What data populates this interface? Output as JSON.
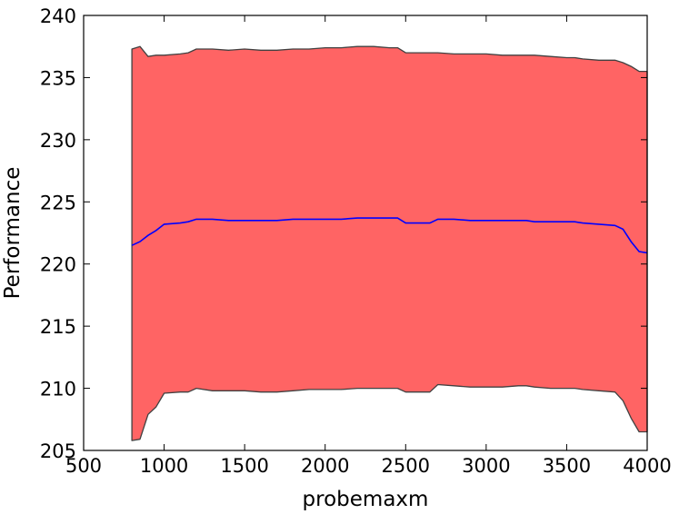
{
  "chart_data": {
    "type": "area",
    "title": "",
    "xlabel": "probemaxm",
    "ylabel": "Performance",
    "xlim": [
      500,
      4000
    ],
    "ylim": [
      205,
      240
    ],
    "xticks": [
      "500",
      "1000",
      "1500",
      "2000",
      "2500",
      "3000",
      "3500",
      "4000"
    ],
    "yticks": [
      "205",
      "210",
      "215",
      "220",
      "225",
      "230",
      "235",
      "240"
    ],
    "grid": false,
    "legend": "none",
    "colors": {
      "band_fill": "#ff6464",
      "band_edge": "#404040",
      "mean_line": "#0000ff"
    },
    "x": [
      800,
      850,
      900,
      950,
      1000,
      1100,
      1150,
      1200,
      1300,
      1400,
      1500,
      1600,
      1700,
      1800,
      1900,
      2000,
      2100,
      2200,
      2300,
      2400,
      2450,
      2500,
      2600,
      2650,
      2700,
      2800,
      2900,
      3000,
      3100,
      3200,
      3250,
      3300,
      3400,
      3500,
      3550,
      3600,
      3700,
      3800,
      3850,
      3900,
      3950,
      4000
    ],
    "upper": [
      237.3,
      237.5,
      236.7,
      236.8,
      236.8,
      236.9,
      237.0,
      237.3,
      237.3,
      237.2,
      237.3,
      237.2,
      237.2,
      237.3,
      237.3,
      237.4,
      237.4,
      237.5,
      237.5,
      237.4,
      237.4,
      237.0,
      237.0,
      237.0,
      237.0,
      236.9,
      236.9,
      236.9,
      236.8,
      236.8,
      236.8,
      236.8,
      236.7,
      236.6,
      236.6,
      236.5,
      236.4,
      236.4,
      236.2,
      235.9,
      235.5,
      235.5
    ],
    "mean": [
      221.5,
      221.8,
      222.3,
      222.7,
      223.2,
      223.3,
      223.4,
      223.6,
      223.6,
      223.5,
      223.5,
      223.5,
      223.5,
      223.6,
      223.6,
      223.6,
      223.6,
      223.7,
      223.7,
      223.7,
      223.7,
      223.3,
      223.3,
      223.3,
      223.6,
      223.6,
      223.5,
      223.5,
      223.5,
      223.5,
      223.5,
      223.4,
      223.4,
      223.4,
      223.4,
      223.3,
      223.2,
      223.1,
      222.8,
      221.8,
      221.0,
      220.9
    ],
    "lower": [
      205.8,
      205.9,
      207.9,
      208.5,
      209.6,
      209.7,
      209.7,
      210.0,
      209.8,
      209.8,
      209.8,
      209.7,
      209.7,
      209.8,
      209.9,
      209.9,
      209.9,
      210.0,
      210.0,
      210.0,
      210.0,
      209.7,
      209.7,
      209.7,
      210.3,
      210.2,
      210.1,
      210.1,
      210.1,
      210.2,
      210.2,
      210.1,
      210.0,
      210.0,
      210.0,
      209.9,
      209.8,
      209.7,
      209.0,
      207.6,
      206.5,
      206.5
    ]
  }
}
